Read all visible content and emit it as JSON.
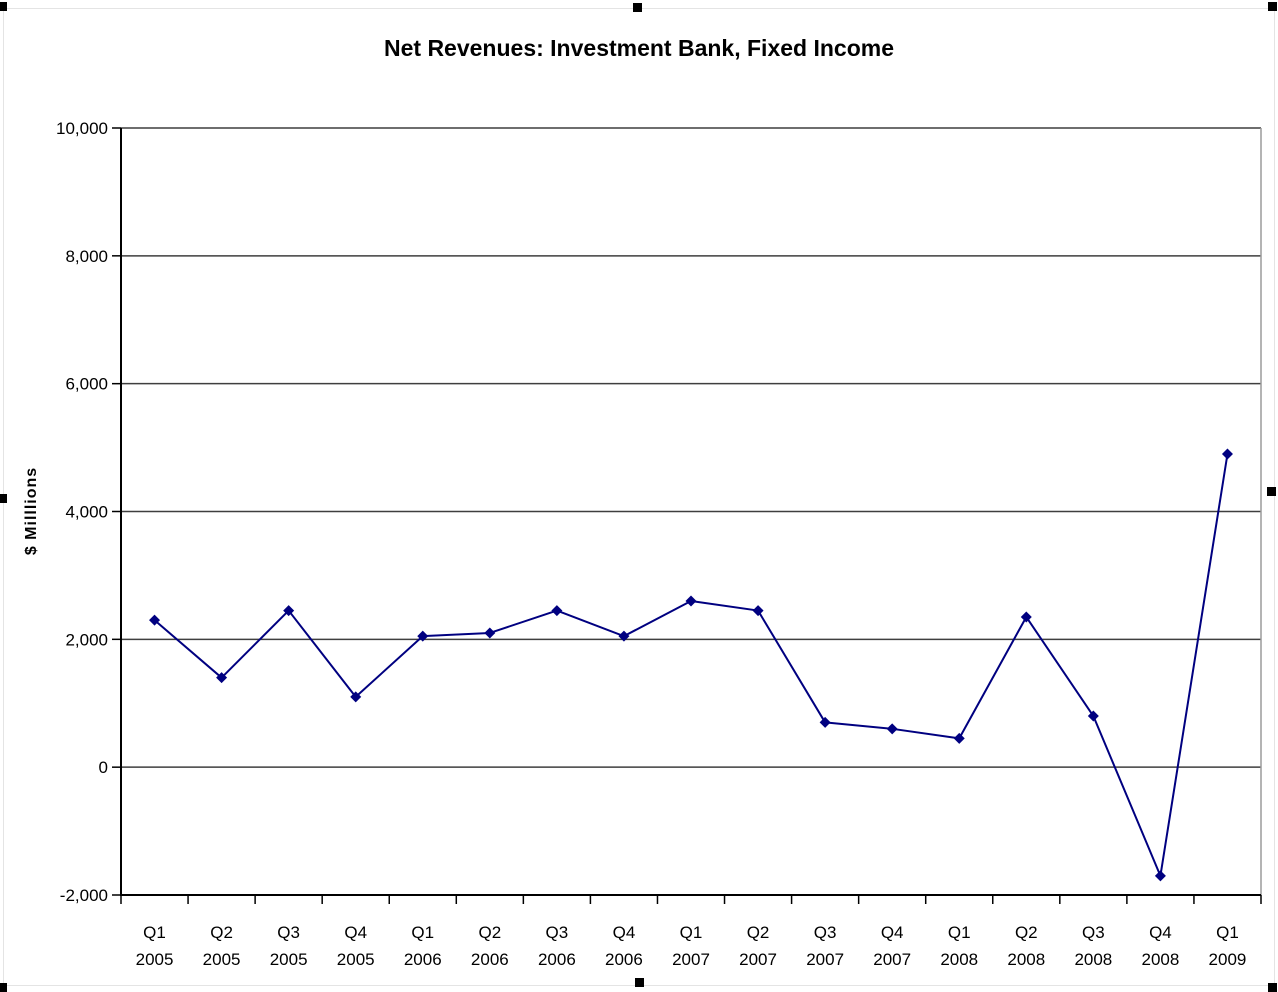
{
  "chart_data": {
    "type": "line",
    "title": "Net Revenues: Investment Bank, Fixed Income",
    "ylabel": "$ Milllions",
    "xlabel": "",
    "categories": [
      {
        "quarter": "Q1",
        "year": "2005"
      },
      {
        "quarter": "Q2",
        "year": "2005"
      },
      {
        "quarter": "Q3",
        "year": "2005"
      },
      {
        "quarter": "Q4",
        "year": "2005"
      },
      {
        "quarter": "Q1",
        "year": "2006"
      },
      {
        "quarter": "Q2",
        "year": "2006"
      },
      {
        "quarter": "Q3",
        "year": "2006"
      },
      {
        "quarter": "Q4",
        "year": "2006"
      },
      {
        "quarter": "Q1",
        "year": "2007"
      },
      {
        "quarter": "Q2",
        "year": "2007"
      },
      {
        "quarter": "Q3",
        "year": "2007"
      },
      {
        "quarter": "Q4",
        "year": "2007"
      },
      {
        "quarter": "Q1",
        "year": "2008"
      },
      {
        "quarter": "Q2",
        "year": "2008"
      },
      {
        "quarter": "Q3",
        "year": "2008"
      },
      {
        "quarter": "Q4",
        "year": "2008"
      },
      {
        "quarter": "Q1",
        "year": "2009"
      }
    ],
    "values": [
      2300,
      1400,
      2450,
      1100,
      2050,
      2100,
      2450,
      2050,
      2600,
      2450,
      700,
      600,
      450,
      2350,
      800,
      -1700,
      4900
    ],
    "ylim": [
      -2000,
      10000
    ],
    "ytick_step": 2000,
    "ytick_labels": [
      "10,000",
      "8,000",
      "6,000",
      "4,000",
      "2,000",
      "0",
      "-2,000"
    ],
    "grid": true,
    "legend": "none",
    "marker": "diamond",
    "colors": {
      "line": "#000080",
      "marker": "#000080",
      "gridline": "#3f3f3f",
      "axis": "#000000",
      "plot_right_border": "#9c9c9c",
      "text": "#000000",
      "selection_handle": "#000000",
      "background": "#ffffff"
    }
  }
}
